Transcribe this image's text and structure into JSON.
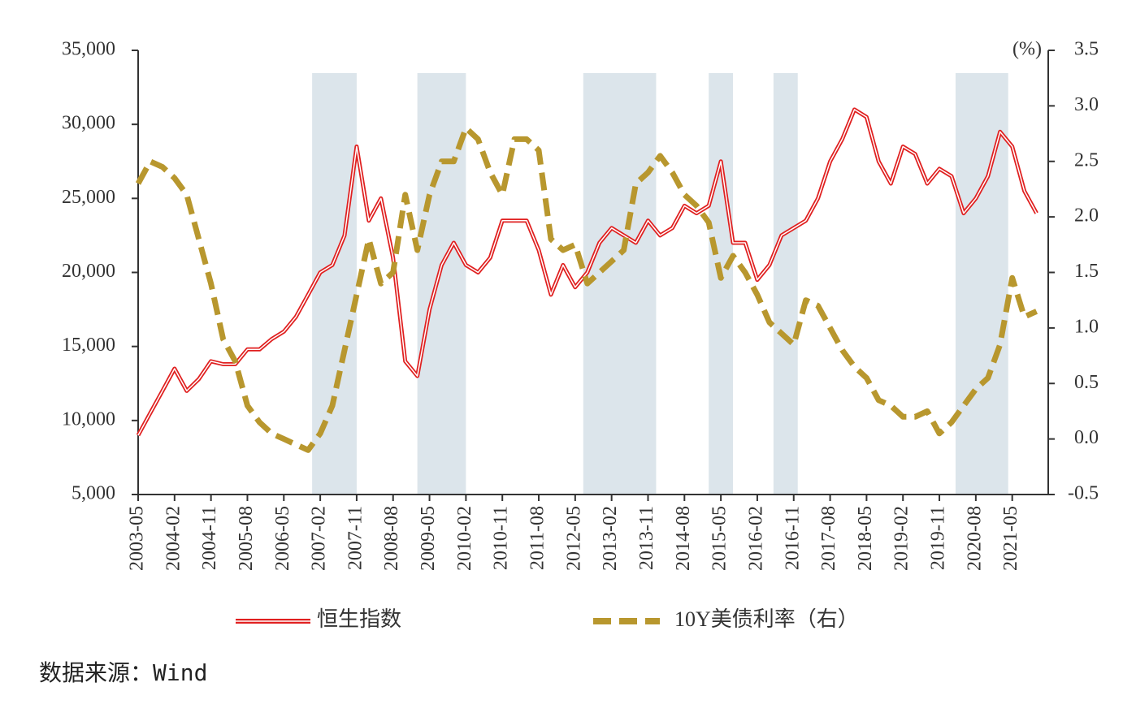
{
  "chart_data": {
    "type": "line",
    "categories": [
      "2003-05",
      null,
      null,
      "2004-02",
      null,
      null,
      "2004-11",
      null,
      null,
      "2005-08",
      null,
      null,
      "2006-05",
      null,
      null,
      "2007-02",
      null,
      null,
      "2007-11",
      null,
      null,
      "2008-08",
      null,
      null,
      "2009-05",
      null,
      null,
      "2010-02",
      null,
      null,
      "2010-11",
      null,
      null,
      "2011-08",
      null,
      null,
      "2012-05",
      null,
      null,
      "2013-02",
      null,
      null,
      "2013-11",
      null,
      null,
      "2014-08",
      null,
      null,
      "2015-05",
      null,
      null,
      "2016-02",
      null,
      null,
      "2016-11",
      null,
      null,
      "2017-08",
      null,
      null,
      "2018-05",
      null,
      null,
      "2019-02",
      null,
      null,
      "2019-11",
      null,
      null,
      "2020-08",
      null,
      null,
      "2021-05",
      null,
      null
    ],
    "series": [
      {
        "name": "恒生指数",
        "color": "#e02020",
        "values": [
          9000,
          10500,
          12000,
          13500,
          12000,
          12800,
          14000,
          13800,
          13800,
          14800,
          14800,
          15500,
          16000,
          17000,
          18500,
          20000,
          20500,
          22500,
          28500,
          23500,
          25000,
          21000,
          14000,
          13000,
          17500,
          20500,
          22000,
          20500,
          20000,
          21000,
          23500,
          23500,
          23500,
          21500,
          18500,
          20500,
          19000,
          20000,
          22000,
          23000,
          22500,
          22000,
          23500,
          22500,
          23000,
          24500,
          24000,
          24500,
          27500,
          22000,
          22000,
          19500,
          20500,
          22500,
          23000,
          23500,
          25000,
          27500,
          29000,
          31000,
          30500,
          27500,
          26000,
          28500,
          28000,
          26000,
          27000,
          26500,
          24000,
          25000,
          26500,
          29500,
          28500,
          25500,
          24000
        ]
      },
      {
        "name": "10Y美债利率（右）",
        "color": "#b8972e",
        "axis": "y2",
        "values": [
          2.3,
          2.5,
          2.45,
          2.35,
          2.2,
          1.8,
          1.4,
          0.9,
          0.7,
          0.3,
          0.15,
          0.05,
          0.0,
          -0.05,
          -0.1,
          0.05,
          0.3,
          0.8,
          1.3,
          1.8,
          1.4,
          1.5,
          2.2,
          1.7,
          2.2,
          2.5,
          2.5,
          2.8,
          2.7,
          2.4,
          2.2,
          2.7,
          2.7,
          2.6,
          1.8,
          1.7,
          1.75,
          1.4,
          1.5,
          1.6,
          1.7,
          2.3,
          2.4,
          2.55,
          2.4,
          2.2,
          2.1,
          1.95,
          1.45,
          1.65,
          1.5,
          1.3,
          1.05,
          0.95,
          0.85,
          1.25,
          1.2,
          1.0,
          0.8,
          0.65,
          0.55,
          0.35,
          0.3,
          0.2,
          0.2,
          0.25,
          0.05,
          0.15,
          0.3,
          0.45,
          0.55,
          0.85,
          1.45,
          1.1,
          1.15
        ]
      }
    ],
    "shaded_periods": [
      [
        "2006-12",
        "2007-11"
      ],
      [
        "2009-02",
        "2010-02"
      ],
      [
        "2012-07",
        "2014-01"
      ],
      [
        "2015-02",
        "2015-08"
      ],
      [
        "2016-06",
        "2016-12"
      ],
      [
        "2020-03",
        "2021-04"
      ]
    ],
    "ylim": [
      5000,
      35000
    ],
    "yticks": [
      {
        "value": 5000,
        "label": "5,000"
      },
      {
        "value": 10000,
        "label": "10,000"
      },
      {
        "value": 15000,
        "label": "15,000"
      },
      {
        "value": 20000,
        "label": "20,000"
      },
      {
        "value": 25000,
        "label": "25,000"
      },
      {
        "value": 30000,
        "label": "30,000"
      },
      {
        "value": 35000,
        "label": "35,000"
      }
    ],
    "y2lim": [
      -0.5,
      3.5
    ],
    "y2ticks": [
      -0.5,
      {
        "value": 0,
        "label": "0.0"
      },
      0.5,
      {
        "value": 1,
        "label": "1.0"
      },
      1.5,
      {
        "value": 2,
        "label": "2.0"
      },
      2.5,
      {
        "value": 3,
        "label": "3.0"
      },
      3.5
    ],
    "y2_unit": "(%)",
    "source": "数据来源：Wind"
  }
}
